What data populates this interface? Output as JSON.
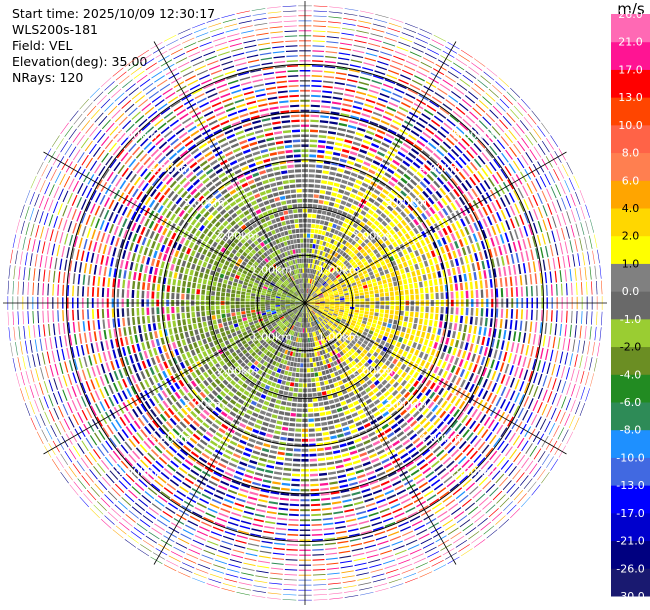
{
  "header": {
    "start_time": "Start time: 2025/10/09 12:30:17",
    "instrument": "WLS200s-181",
    "field": "Field: VEL",
    "elevation": "Elevation(deg): 35.00",
    "nrays": "NRays: 120"
  },
  "chart_data": {
    "type": "ppi",
    "field": "VEL",
    "units": "m/s",
    "elevation_deg": 35.0,
    "nrays": 120,
    "max_range_km": 5.0,
    "ring_labels": [
      "1.00km",
      "2.00km",
      "3.00km",
      "4.00km",
      "5.00km"
    ],
    "ring_ranges_km": [
      1,
      2,
      3,
      4,
      5
    ],
    "colorbar": {
      "boundaries": [
        -30.0,
        -26.0,
        -21.0,
        -17.0,
        -13.0,
        -10.0,
        -8.0,
        -6.0,
        -4.0,
        -2.0,
        -1.0,
        0.0,
        1.0,
        2.0,
        4.0,
        6.0,
        8.0,
        10.0,
        13.0,
        17.0,
        21.0,
        26.0
      ],
      "colors": [
        "#191970",
        "#000080",
        "#0000cd",
        "#0000ff",
        "#4169e1",
        "#1e90ff",
        "#2e8b57",
        "#228b22",
        "#6b8e23",
        "#9acd32",
        "#696969",
        "#808080",
        "#ffff00",
        "#ffd700",
        "#ffa500",
        "#ff7f50",
        "#ff6347",
        "#ff4500",
        "#ff0000",
        "#ff1493",
        "#ff69b4"
      ],
      "tick_labels": [
        "-30.0",
        "-26.0",
        "-21.0",
        "-17.0",
        "-13.0",
        "-10.0",
        "-8.0",
        "-6.0",
        "-4.0",
        "-2.0",
        "-1.0",
        "0.0",
        "1.0",
        "2.0",
        "4.0",
        "6.0",
        "8.0",
        "10.0",
        "13.0",
        "17.0",
        "21.0",
        "26.0"
      ]
    }
  }
}
